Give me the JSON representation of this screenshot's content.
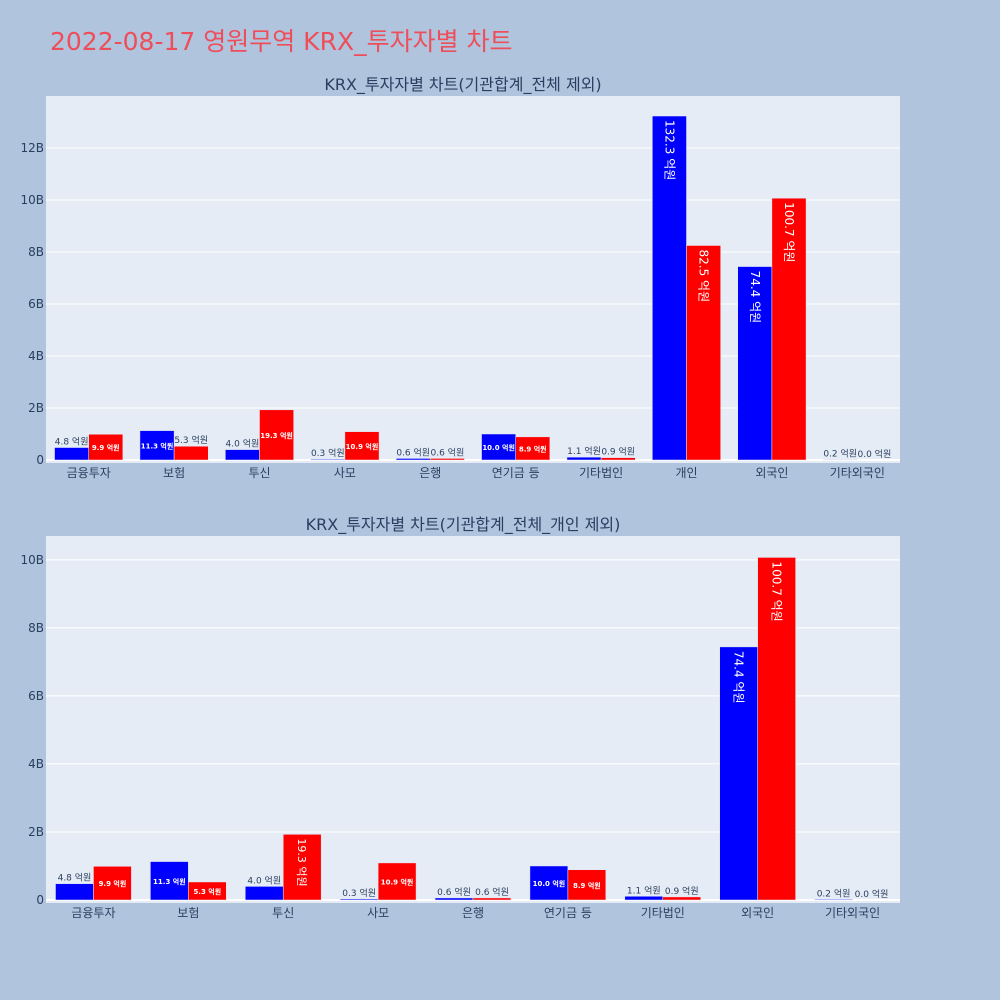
{
  "page": {
    "title": "2022-08-17 영원무역 KRX_투자자별 차트"
  },
  "colors": {
    "background": "#b0c4de",
    "plot_background": "#e5ecf6",
    "title": "#ee4e5a",
    "buy": "#0000ff",
    "sell": "#ff0000",
    "text": "#2a3f5f"
  },
  "chart_data": [
    {
      "type": "bar",
      "title": "KRX_투자자별 차트(기관합계_전체 제외)",
      "categories": [
        "금융투자",
        "보험",
        "투신",
        "사모",
        "은행",
        "연기금 등",
        "기타법인",
        "개인",
        "외국인",
        "기타외국인"
      ],
      "ylim": [
        0,
        14000000000
      ],
      "yticks": [
        0,
        2000000000,
        4000000000,
        6000000000,
        8000000000,
        10000000000,
        12000000000
      ],
      "ytick_labels": [
        "0",
        "2B",
        "4B",
        "6B",
        "8B",
        "10B",
        "12B"
      ],
      "grid": true,
      "series": [
        {
          "color": "#0000ff",
          "values": [
            480000000,
            1130000000,
            400000000,
            30000000,
            60000000,
            1000000000,
            110000000,
            13230000000,
            7440000000,
            20000000
          ],
          "labels": [
            "4.8 억원",
            "11.3 억원",
            "4.0 억원",
            "0.3 억원",
            "0.6 억원",
            "10.0 억원",
            "1.1 억원",
            "132.3 억원",
            "74.4 억원",
            "0.2 억원"
          ]
        },
        {
          "color": "#ff0000",
          "values": [
            990000000,
            530000000,
            1930000000,
            1090000000,
            60000000,
            890000000,
            90000000,
            8250000000,
            10070000000,
            0
          ],
          "labels": [
            "9.9 억원",
            "5.3 억원",
            "19.3 억원",
            "10.9 억원",
            "0.6 억원",
            "8.9 억원",
            "0.9 억원",
            "82.5 억원",
            "100.7 억원",
            "0.0 억원"
          ]
        }
      ]
    },
    {
      "type": "bar",
      "title": "KRX_투자자별 차트(기관합계_전체_개인 제외)",
      "categories": [
        "금융투자",
        "보험",
        "투신",
        "사모",
        "은행",
        "연기금 등",
        "기타법인",
        "외국인",
        "기타외국인"
      ],
      "ylim": [
        0,
        10700000000
      ],
      "yticks": [
        0,
        2000000000,
        4000000000,
        6000000000,
        8000000000,
        10000000000
      ],
      "ytick_labels": [
        "0",
        "2B",
        "4B",
        "6B",
        "8B",
        "10B"
      ],
      "grid": true,
      "series": [
        {
          "color": "#0000ff",
          "values": [
            480000000,
            1130000000,
            400000000,
            30000000,
            60000000,
            1000000000,
            110000000,
            7440000000,
            20000000
          ],
          "labels": [
            "4.8 억원",
            "11.3 억원",
            "4.0 억원",
            "0.3 억원",
            "0.6 억원",
            "10.0 억원",
            "1.1 억원",
            "74.4 억원",
            "0.2 억원"
          ]
        },
        {
          "color": "#ff0000",
          "values": [
            990000000,
            530000000,
            1930000000,
            1090000000,
            60000000,
            890000000,
            90000000,
            10070000000,
            0
          ],
          "labels": [
            "9.9 억원",
            "5.3 억원",
            "19.3 억원",
            "10.9 억원",
            "0.6 억원",
            "8.9 억원",
            "0.9 억원",
            "100.7 억원",
            "0.0 억원"
          ]
        }
      ]
    }
  ]
}
